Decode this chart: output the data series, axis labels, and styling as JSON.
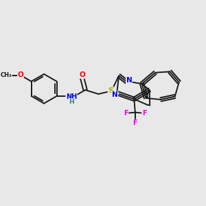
{
  "background_color": "#E8E8E8",
  "bond_color": "#1a1a1a",
  "figsize": [
    3.0,
    3.0
  ],
  "dpi": 100,
  "atom_colors": {
    "O": "#FF0000",
    "N": "#0000EE",
    "S": "#AAAA00",
    "F": "#EE00EE",
    "H": "#2a8a7a",
    "C": "#1a1a1a"
  },
  "lw": 1.4
}
